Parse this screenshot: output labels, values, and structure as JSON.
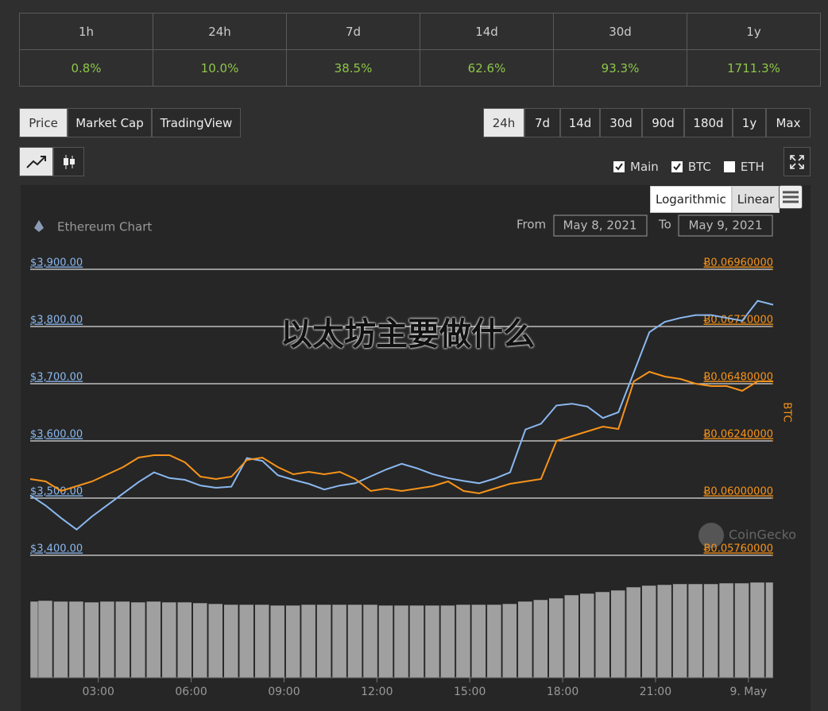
{
  "performance": {
    "headers": [
      "1h",
      "24h",
      "7d",
      "14d",
      "30d",
      "1y"
    ],
    "values": [
      "0.8%",
      "10.0%",
      "38.5%",
      "62.6%",
      "93.3%",
      "1711.3%"
    ]
  },
  "tabs": [
    "Price",
    "Market Cap",
    "TradingView"
  ],
  "ranges": [
    "24h",
    "7d",
    "14d",
    "30d",
    "90d",
    "180d",
    "1y",
    "Max"
  ],
  "scale_buttons": [
    "Logarithmic",
    "Linear"
  ],
  "extra_toggles": [
    {
      "name": "ETH",
      "checked": false
    }
  ],
  "overlay_text": "以太坊主要做什么",
  "chart_data": {
    "type": "line",
    "title": "Ethereum Chart",
    "from_label": "From",
    "from": "May 8, 2021",
    "to_label": "To",
    "to": "May 9, 2021",
    "watermark": "CoinGecko",
    "y2_label": "BTC",
    "grid": true,
    "x": [
      0.8,
      1.3,
      1.8,
      2.3,
      2.8,
      3.3,
      3.8,
      4.3,
      4.8,
      5.3,
      5.8,
      6.3,
      6.8,
      7.3,
      7.8,
      8.3,
      8.8,
      9.3,
      9.8,
      10.3,
      10.8,
      11.3,
      11.8,
      12.3,
      12.8,
      13.3,
      13.8,
      14.3,
      14.8,
      15.3,
      15.8,
      16.3,
      16.8,
      17.3,
      17.8,
      18.3,
      18.8,
      19.3,
      19.8,
      20.3,
      20.8,
      21.3,
      21.8,
      22.3,
      22.8,
      23.3,
      23.8,
      24.3,
      24.8
    ],
    "xlim": [
      0.8,
      24.8
    ],
    "xticks": [
      {
        "value": 3,
        "label": "03:00"
      },
      {
        "value": 6,
        "label": "06:00"
      },
      {
        "value": 9,
        "label": "09:00"
      },
      {
        "value": 12,
        "label": "12:00"
      },
      {
        "value": 15,
        "label": "15:00"
      },
      {
        "value": 18,
        "label": "18:00"
      },
      {
        "value": 21,
        "label": "21:00"
      },
      {
        "value": 24,
        "label": "9. May"
      }
    ],
    "ylim": [
      3400,
      3900
    ],
    "yticks": [
      {
        "value": 3400,
        "label": "$3,400.00"
      },
      {
        "value": 3500,
        "label": "$3,500.00"
      },
      {
        "value": 3600,
        "label": "$3,600.00"
      },
      {
        "value": 3700,
        "label": "$3,700.00"
      },
      {
        "value": 3800,
        "label": "$3,800.00"
      },
      {
        "value": 3900,
        "label": "$3,900.00"
      }
    ],
    "y2lim": [
      0.0576,
      0.0696
    ],
    "y2ticks": [
      {
        "value": 0.0576,
        "label": "Ƀ0.05760000"
      },
      {
        "value": 0.06,
        "label": "Ƀ0.06000000"
      },
      {
        "value": 0.0624,
        "label": "Ƀ0.06240000"
      },
      {
        "value": 0.0648,
        "label": "Ƀ0.06480000"
      },
      {
        "value": 0.0672,
        "label": "Ƀ0.06720000"
      },
      {
        "value": 0.0696,
        "label": "Ƀ0.06960000"
      }
    ],
    "series": [
      {
        "name": "Main",
        "checked": true,
        "color": "#8ab8f0",
        "values": [
          3505,
          3487,
          3465,
          3445,
          3468,
          3488,
          3508,
          3528,
          3545,
          3535,
          3532,
          3522,
          3518,
          3520,
          3570,
          3565,
          3540,
          3532,
          3525,
          3515,
          3522,
          3526,
          3538,
          3550,
          3560,
          3552,
          3542,
          3535,
          3530,
          3526,
          3534,
          3545,
          3620,
          3630,
          3662,
          3665,
          3660,
          3640,
          3650,
          3720,
          3790,
          3808,
          3815,
          3820,
          3820,
          3815,
          3810,
          3845,
          3838
        ]
      },
      {
        "name": "BTC",
        "checked": true,
        "axis": "y2",
        "color": "#f7931a",
        "values": [
          0.0608,
          0.0607,
          0.0603,
          0.0605,
          0.0607,
          0.061,
          0.0613,
          0.0617,
          0.0618,
          0.0618,
          0.0615,
          0.0609,
          0.0608,
          0.0609,
          0.0616,
          0.0617,
          0.0613,
          0.061,
          0.0611,
          0.061,
          0.0611,
          0.0608,
          0.0603,
          0.0604,
          0.0603,
          0.0604,
          0.0605,
          0.0607,
          0.0603,
          0.0602,
          0.0604,
          0.0606,
          0.0607,
          0.0608,
          0.0624,
          0.0626,
          0.0628,
          0.063,
          0.0629,
          0.0649,
          0.0653,
          0.0651,
          0.065,
          0.0648,
          0.0647,
          0.0647,
          0.0645,
          0.0649,
          0.0649
        ]
      }
    ],
    "volume": {
      "color": "#a0a0a0",
      "values": [
        96,
        97,
        96,
        96,
        95,
        96,
        96,
        95,
        96,
        95,
        95,
        94,
        93,
        92,
        92,
        92,
        91,
        91,
        92,
        92,
        92,
        92,
        92,
        91,
        91,
        91,
        91,
        91,
        92,
        92,
        92,
        93,
        96,
        98,
        100,
        104,
        106,
        108,
        110,
        114,
        116,
        117,
        118,
        118,
        118,
        119,
        119,
        120,
        120
      ]
    }
  }
}
